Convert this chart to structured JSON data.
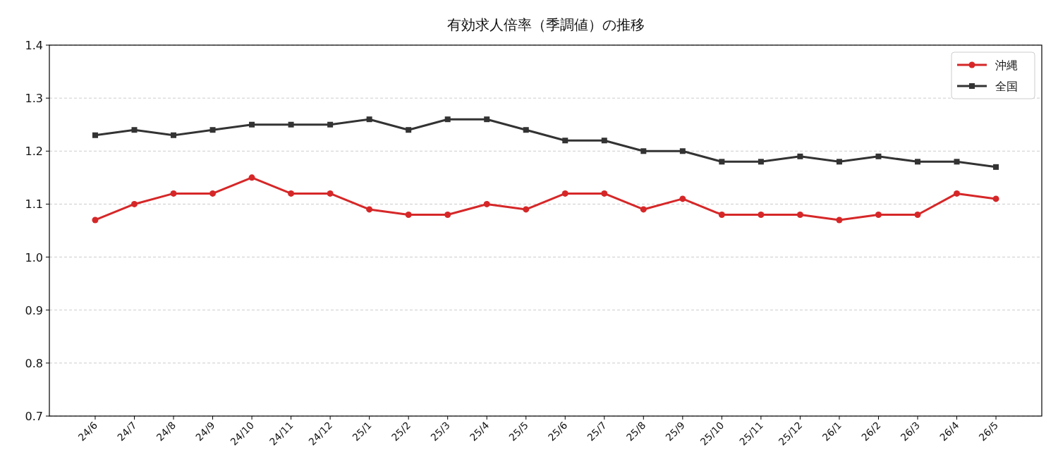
{
  "chart_data": {
    "type": "line",
    "title": "有効求人倍率（季調値）の推移",
    "categories": [
      "24/6",
      "24/7",
      "24/8",
      "24/9",
      "24/10",
      "24/11",
      "24/12",
      "25/1",
      "25/2",
      "25/3",
      "25/4",
      "25/5",
      "25/6",
      "25/7",
      "25/8",
      "25/9",
      "25/10",
      "25/11",
      "25/12",
      "26/1",
      "26/2",
      "26/3",
      "26/4",
      "26/5"
    ],
    "series": [
      {
        "name": "沖縄",
        "color": "#d62728",
        "marker": "circle",
        "values": [
          1.07,
          1.1,
          1.12,
          1.12,
          1.15,
          1.12,
          1.12,
          1.09,
          1.08,
          1.08,
          1.1,
          1.09,
          1.12,
          1.12,
          1.09,
          1.11,
          1.08,
          1.08,
          1.08,
          1.07,
          1.08,
          1.08,
          1.12,
          1.11
        ]
      },
      {
        "name": "全国",
        "color": "#333333",
        "marker": "square",
        "values": [
          1.23,
          1.24,
          1.23,
          1.24,
          1.25,
          1.25,
          1.25,
          1.26,
          1.24,
          1.26,
          1.26,
          1.24,
          1.22,
          1.22,
          1.2,
          1.2,
          1.18,
          1.18,
          1.19,
          1.18,
          1.19,
          1.18,
          1.18,
          1.17
        ]
      }
    ],
    "ylim": [
      0.7,
      1.4
    ],
    "yticks": [
      0.7,
      0.8,
      0.9,
      {
        "value": 1.0,
        "label": "1.0"
      },
      1.1,
      1.2,
      1.3,
      1.4
    ],
    "grid": "y",
    "legend": "top right",
    "line_style": "solid"
  }
}
